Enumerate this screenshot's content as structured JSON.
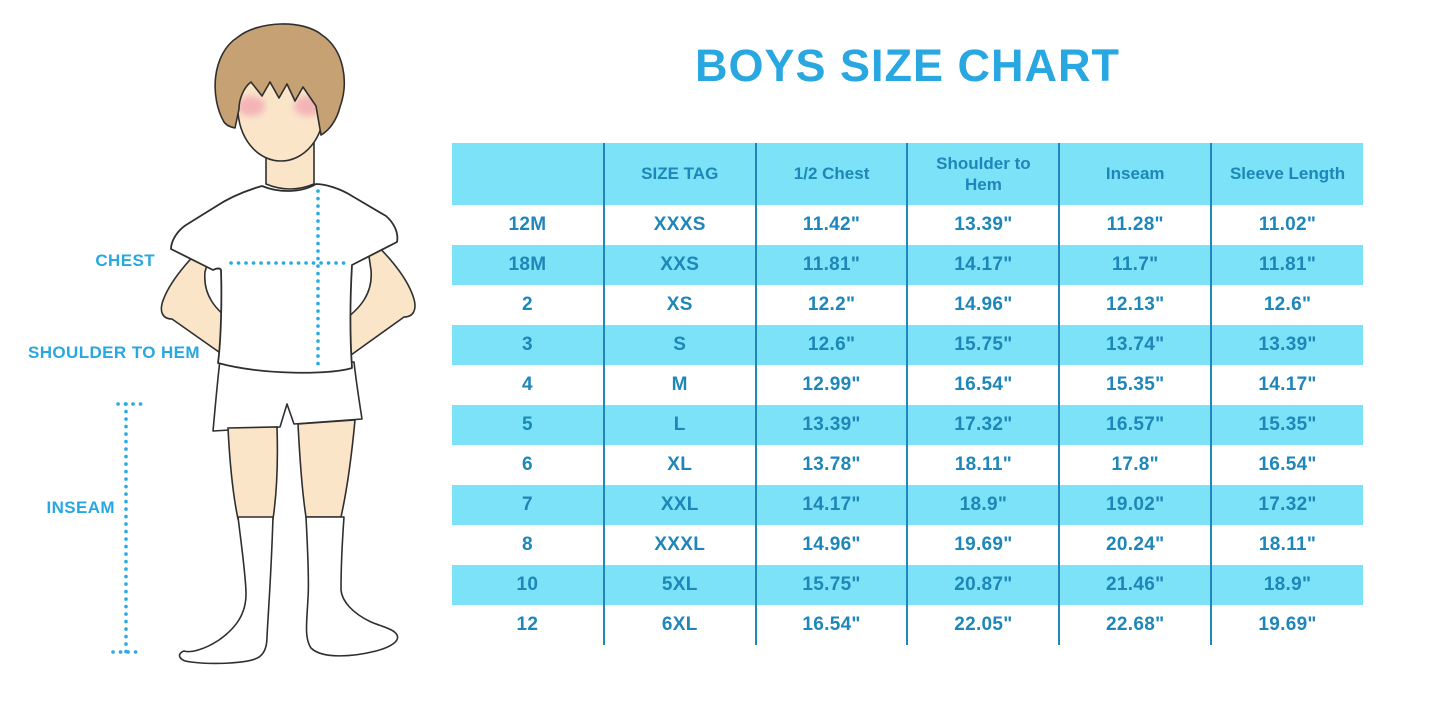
{
  "title": "BOYS SIZE CHART",
  "diagram": {
    "labels": {
      "chest": "CHEST",
      "shoulder_to_hem": "SHOULDER TO HEM",
      "inseam": "INSEAM"
    }
  },
  "colors": {
    "accent_blue": "#29A7E0",
    "table_text_blue": "#1E86B8",
    "row_light_blue": "#7BE2F8",
    "column_divider_blue": "#1F87BD",
    "dotted_line_blue": "#29ABE2",
    "hair_brown": "#C5A173",
    "skin": "#FAE5C9",
    "cheek_pink": "#F2A8B2",
    "outline": "#2F2F2F"
  },
  "chart_data": {
    "type": "table",
    "title": "BOYS SIZE CHART",
    "columns": [
      "",
      "SIZE TAG",
      "1/2 Chest",
      "Shoulder to Hem",
      "Inseam",
      "Sleeve Length"
    ],
    "rows": [
      [
        "12M",
        "XXXS",
        "11.42\"",
        "13.39\"",
        "11.28\"",
        "11.02\""
      ],
      [
        "18M",
        "XXS",
        "11.81\"",
        "14.17\"",
        "11.7\"",
        "11.81\""
      ],
      [
        "2",
        "XS",
        "12.2\"",
        "14.96\"",
        "12.13\"",
        "12.6\""
      ],
      [
        "3",
        "S",
        "12.6\"",
        "15.75\"",
        "13.74\"",
        "13.39\""
      ],
      [
        "4",
        "M",
        "12.99\"",
        "16.54\"",
        "15.35\"",
        "14.17\""
      ],
      [
        "5",
        "L",
        "13.39\"",
        "17.32\"",
        "16.57\"",
        "15.35\""
      ],
      [
        "6",
        "XL",
        "13.78\"",
        "18.11\"",
        "17.8\"",
        "16.54\""
      ],
      [
        "7",
        "XXL",
        "14.17\"",
        "18.9\"",
        "19.02\"",
        "17.32\""
      ],
      [
        "8",
        "XXXL",
        "14.96\"",
        "19.69\"",
        "20.24\"",
        "18.11\""
      ],
      [
        "10",
        "5XL",
        "15.75\"",
        "20.87\"",
        "21.46\"",
        "18.9\""
      ],
      [
        "12",
        "6XL",
        "16.54\"",
        "22.05\"",
        "22.68\"",
        "19.69\""
      ]
    ]
  }
}
